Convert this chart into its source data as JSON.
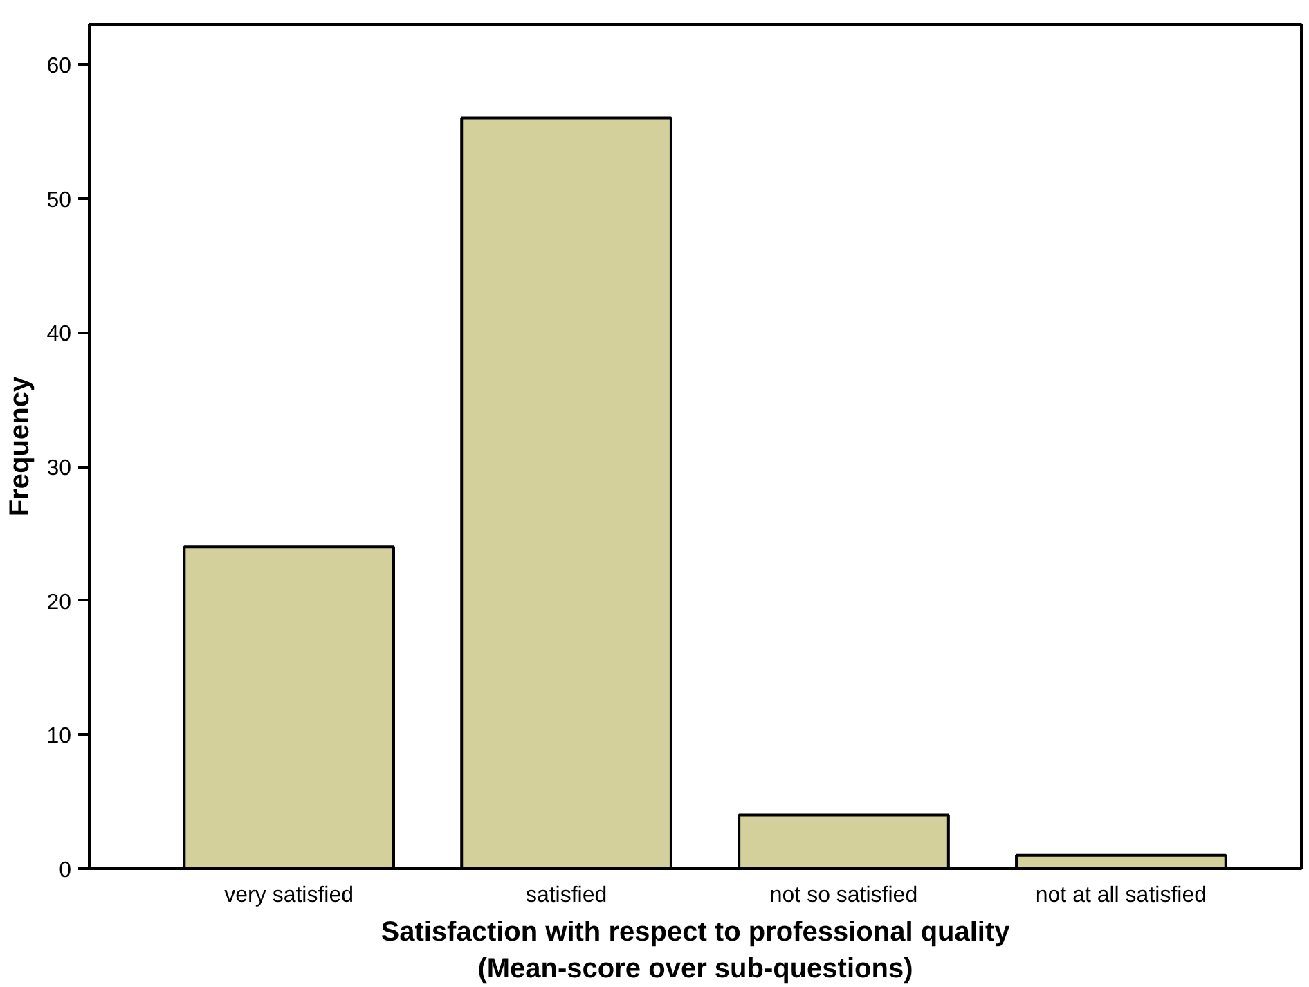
{
  "chart_data": {
    "type": "bar",
    "categories": [
      "very satisfied",
      "satisfied",
      "not so satisfied",
      "not at all satisfied"
    ],
    "values": [
      24,
      56,
      4,
      1
    ],
    "color": "#d3d09b",
    "xlabel": "Satisfaction with respect to professional quality\n(Mean-score over sub-questions)",
    "ylabel": "Frequency",
    "ylim": [
      0,
      63
    ],
    "yticks": [
      0,
      10,
      20,
      30,
      40,
      50,
      60
    ],
    "grid": false
  }
}
